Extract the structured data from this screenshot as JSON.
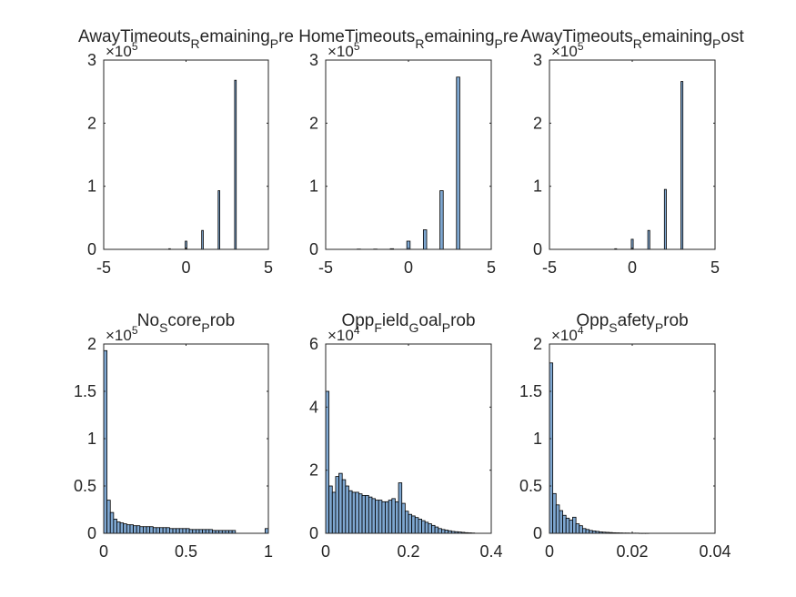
{
  "colors": {
    "bar_fill": "#7ea7d1",
    "bar_edge": "#000000",
    "axis": "#262626",
    "background": "#ffffff"
  },
  "chart_data": [
    {
      "type": "bar",
      "title_parts": [
        {
          "text": "AwayTimeouts",
          "shift": "none"
        },
        {
          "text": "R",
          "shift": "sub"
        },
        {
          "text": "emaining",
          "shift": "none"
        },
        {
          "text": "P",
          "shift": "sub"
        },
        {
          "text": "re",
          "shift": "none"
        }
      ],
      "scale_label": "×10",
      "scale_exponent": "5",
      "xlim": [
        -5,
        5
      ],
      "ylim": [
        0,
        3
      ],
      "xticks": [
        -5,
        0,
        5
      ],
      "xtick_labels": [
        "-5",
        "0",
        "5"
      ],
      "yticks": [
        0,
        1,
        2,
        3
      ],
      "ytick_labels": [
        "0",
        "1",
        "2",
        "3"
      ],
      "bar_width": 0.1,
      "bars": [
        {
          "x": -1,
          "value": 0.01
        },
        {
          "x": 0,
          "value": 0.13
        },
        {
          "x": 1,
          "value": 0.3
        },
        {
          "x": 2,
          "value": 0.93
        },
        {
          "x": 3,
          "value": 2.68
        }
      ]
    },
    {
      "type": "bar",
      "title_parts": [
        {
          "text": "HomeTimeouts",
          "shift": "none"
        },
        {
          "text": "R",
          "shift": "sub"
        },
        {
          "text": "emaining",
          "shift": "none"
        },
        {
          "text": "P",
          "shift": "sub"
        },
        {
          "text": "re",
          "shift": "none"
        }
      ],
      "scale_label": "×10",
      "scale_exponent": "5",
      "xlim": [
        -5,
        5
      ],
      "ylim": [
        0,
        3
      ],
      "xticks": [
        -5,
        0,
        5
      ],
      "xtick_labels": [
        "-5",
        "0",
        "5"
      ],
      "yticks": [
        0,
        1,
        2,
        3
      ],
      "ytick_labels": [
        "0",
        "1",
        "2",
        "3"
      ],
      "bar_width": 0.2,
      "bars": [
        {
          "x": -3,
          "value": 0.005
        },
        {
          "x": -2,
          "value": 0.005
        },
        {
          "x": -1,
          "value": 0.01
        },
        {
          "x": 0,
          "value": 0.13
        },
        {
          "x": 1,
          "value": 0.31
        },
        {
          "x": 2,
          "value": 0.93
        },
        {
          "x": 3,
          "value": 2.73
        }
      ]
    },
    {
      "type": "bar",
      "title_parts": [
        {
          "text": "AwayTimeouts",
          "shift": "none"
        },
        {
          "text": "R",
          "shift": "sub"
        },
        {
          "text": "emaining",
          "shift": "none"
        },
        {
          "text": "P",
          "shift": "sub"
        },
        {
          "text": "ost",
          "shift": "none"
        }
      ],
      "scale_label": "×10",
      "scale_exponent": "5",
      "xlim": [
        -5,
        5
      ],
      "ylim": [
        0,
        3
      ],
      "xticks": [
        -5,
        0,
        5
      ],
      "xtick_labels": [
        "-5",
        "0",
        "5"
      ],
      "yticks": [
        0,
        1,
        2,
        3
      ],
      "ytick_labels": [
        "0",
        "1",
        "2",
        "3"
      ],
      "bar_width": 0.12,
      "bars": [
        {
          "x": -1,
          "value": 0.01
        },
        {
          "x": 0,
          "value": 0.16
        },
        {
          "x": 1,
          "value": 0.3
        },
        {
          "x": 2,
          "value": 0.95
        },
        {
          "x": 3,
          "value": 2.66
        }
      ]
    },
    {
      "type": "bar",
      "title_parts": [
        {
          "text": "No",
          "shift": "none"
        },
        {
          "text": "S",
          "shift": "sub"
        },
        {
          "text": "core",
          "shift": "none"
        },
        {
          "text": "P",
          "shift": "sub"
        },
        {
          "text": "rob",
          "shift": "none"
        }
      ],
      "scale_label": "×10",
      "scale_exponent": "5",
      "xlim": [
        0,
        1
      ],
      "ylim": [
        0,
        2
      ],
      "xticks": [
        0,
        0.5,
        1
      ],
      "xtick_labels": [
        "0",
        "0.5",
        "1"
      ],
      "yticks": [
        0,
        0.5,
        1,
        1.5,
        2
      ],
      "ytick_labels": [
        "0",
        "0.5",
        "1",
        "1.5",
        "2"
      ],
      "bin_width": 0.02,
      "bins_start": 0,
      "values": [
        1.93,
        0.35,
        0.22,
        0.15,
        0.12,
        0.11,
        0.1,
        0.09,
        0.09,
        0.08,
        0.08,
        0.07,
        0.07,
        0.07,
        0.07,
        0.06,
        0.06,
        0.06,
        0.06,
        0.06,
        0.05,
        0.05,
        0.05,
        0.05,
        0.05,
        0.05,
        0.04,
        0.04,
        0.04,
        0.04,
        0.04,
        0.04,
        0.04,
        0.03,
        0.03,
        0.03,
        0.03,
        0.03,
        0.03,
        0.03,
        0,
        0,
        0,
        0,
        0,
        0,
        0,
        0,
        0,
        0.05
      ]
    },
    {
      "type": "bar",
      "title_parts": [
        {
          "text": "Opp",
          "shift": "none"
        },
        {
          "text": "F",
          "shift": "sub"
        },
        {
          "text": "ield",
          "shift": "none"
        },
        {
          "text": "G",
          "shift": "sub"
        },
        {
          "text": "oal",
          "shift": "none"
        },
        {
          "text": "P",
          "shift": "sub"
        },
        {
          "text": "rob",
          "shift": "none"
        }
      ],
      "scale_label": "×10",
      "scale_exponent": "4",
      "xlim": [
        0,
        0.4
      ],
      "ylim": [
        0,
        6
      ],
      "xticks": [
        0,
        0.2,
        0.4
      ],
      "xtick_labels": [
        "0",
        "0.2",
        "0.4"
      ],
      "yticks": [
        0,
        2,
        4,
        6
      ],
      "ytick_labels": [
        "0",
        "2",
        "4",
        "6"
      ],
      "bin_width": 0.008,
      "bins_start": 0,
      "values": [
        4.5,
        1.5,
        1.3,
        1.8,
        1.9,
        1.7,
        1.5,
        1.35,
        1.3,
        1.3,
        1.25,
        1.2,
        1.2,
        1.15,
        1.1,
        1.05,
        1.05,
        1.0,
        1.0,
        1.05,
        1.1,
        1.0,
        1.6,
        0.95,
        0.7,
        0.6,
        0.55,
        0.5,
        0.45,
        0.4,
        0.35,
        0.3,
        0.25,
        0.2,
        0.15,
        0.12,
        0.1,
        0.08,
        0.06,
        0.05,
        0.04,
        0.03,
        0.02,
        0.015,
        0.01
      ]
    },
    {
      "type": "bar",
      "title_parts": [
        {
          "text": "Opp",
          "shift": "none"
        },
        {
          "text": "S",
          "shift": "sub"
        },
        {
          "text": "afety",
          "shift": "none"
        },
        {
          "text": "P",
          "shift": "sub"
        },
        {
          "text": "rob",
          "shift": "none"
        }
      ],
      "scale_label": "×10",
      "scale_exponent": "4",
      "xlim": [
        0,
        0.04
      ],
      "ylim": [
        0,
        2
      ],
      "xticks": [
        0,
        0.02,
        0.04
      ],
      "xtick_labels": [
        "0",
        "0.02",
        "0.04"
      ],
      "yticks": [
        0,
        0.5,
        1,
        1.5,
        2
      ],
      "ytick_labels": [
        "0",
        "0.5",
        "1",
        "1.5",
        "2"
      ],
      "bin_width": 0.0008,
      "bins_start": 0,
      "values": [
        1.8,
        0.42,
        0.3,
        0.24,
        0.19,
        0.16,
        0.14,
        0.17,
        0.1,
        0.08,
        0.05,
        0.04,
        0.03,
        0.025,
        0.02,
        0.015,
        0.012,
        0.01,
        0.008,
        0.006,
        0.005,
        0.004,
        0.003,
        0.003,
        0.002,
        0.002,
        0.002,
        0.001,
        0.001,
        0.001
      ]
    }
  ]
}
